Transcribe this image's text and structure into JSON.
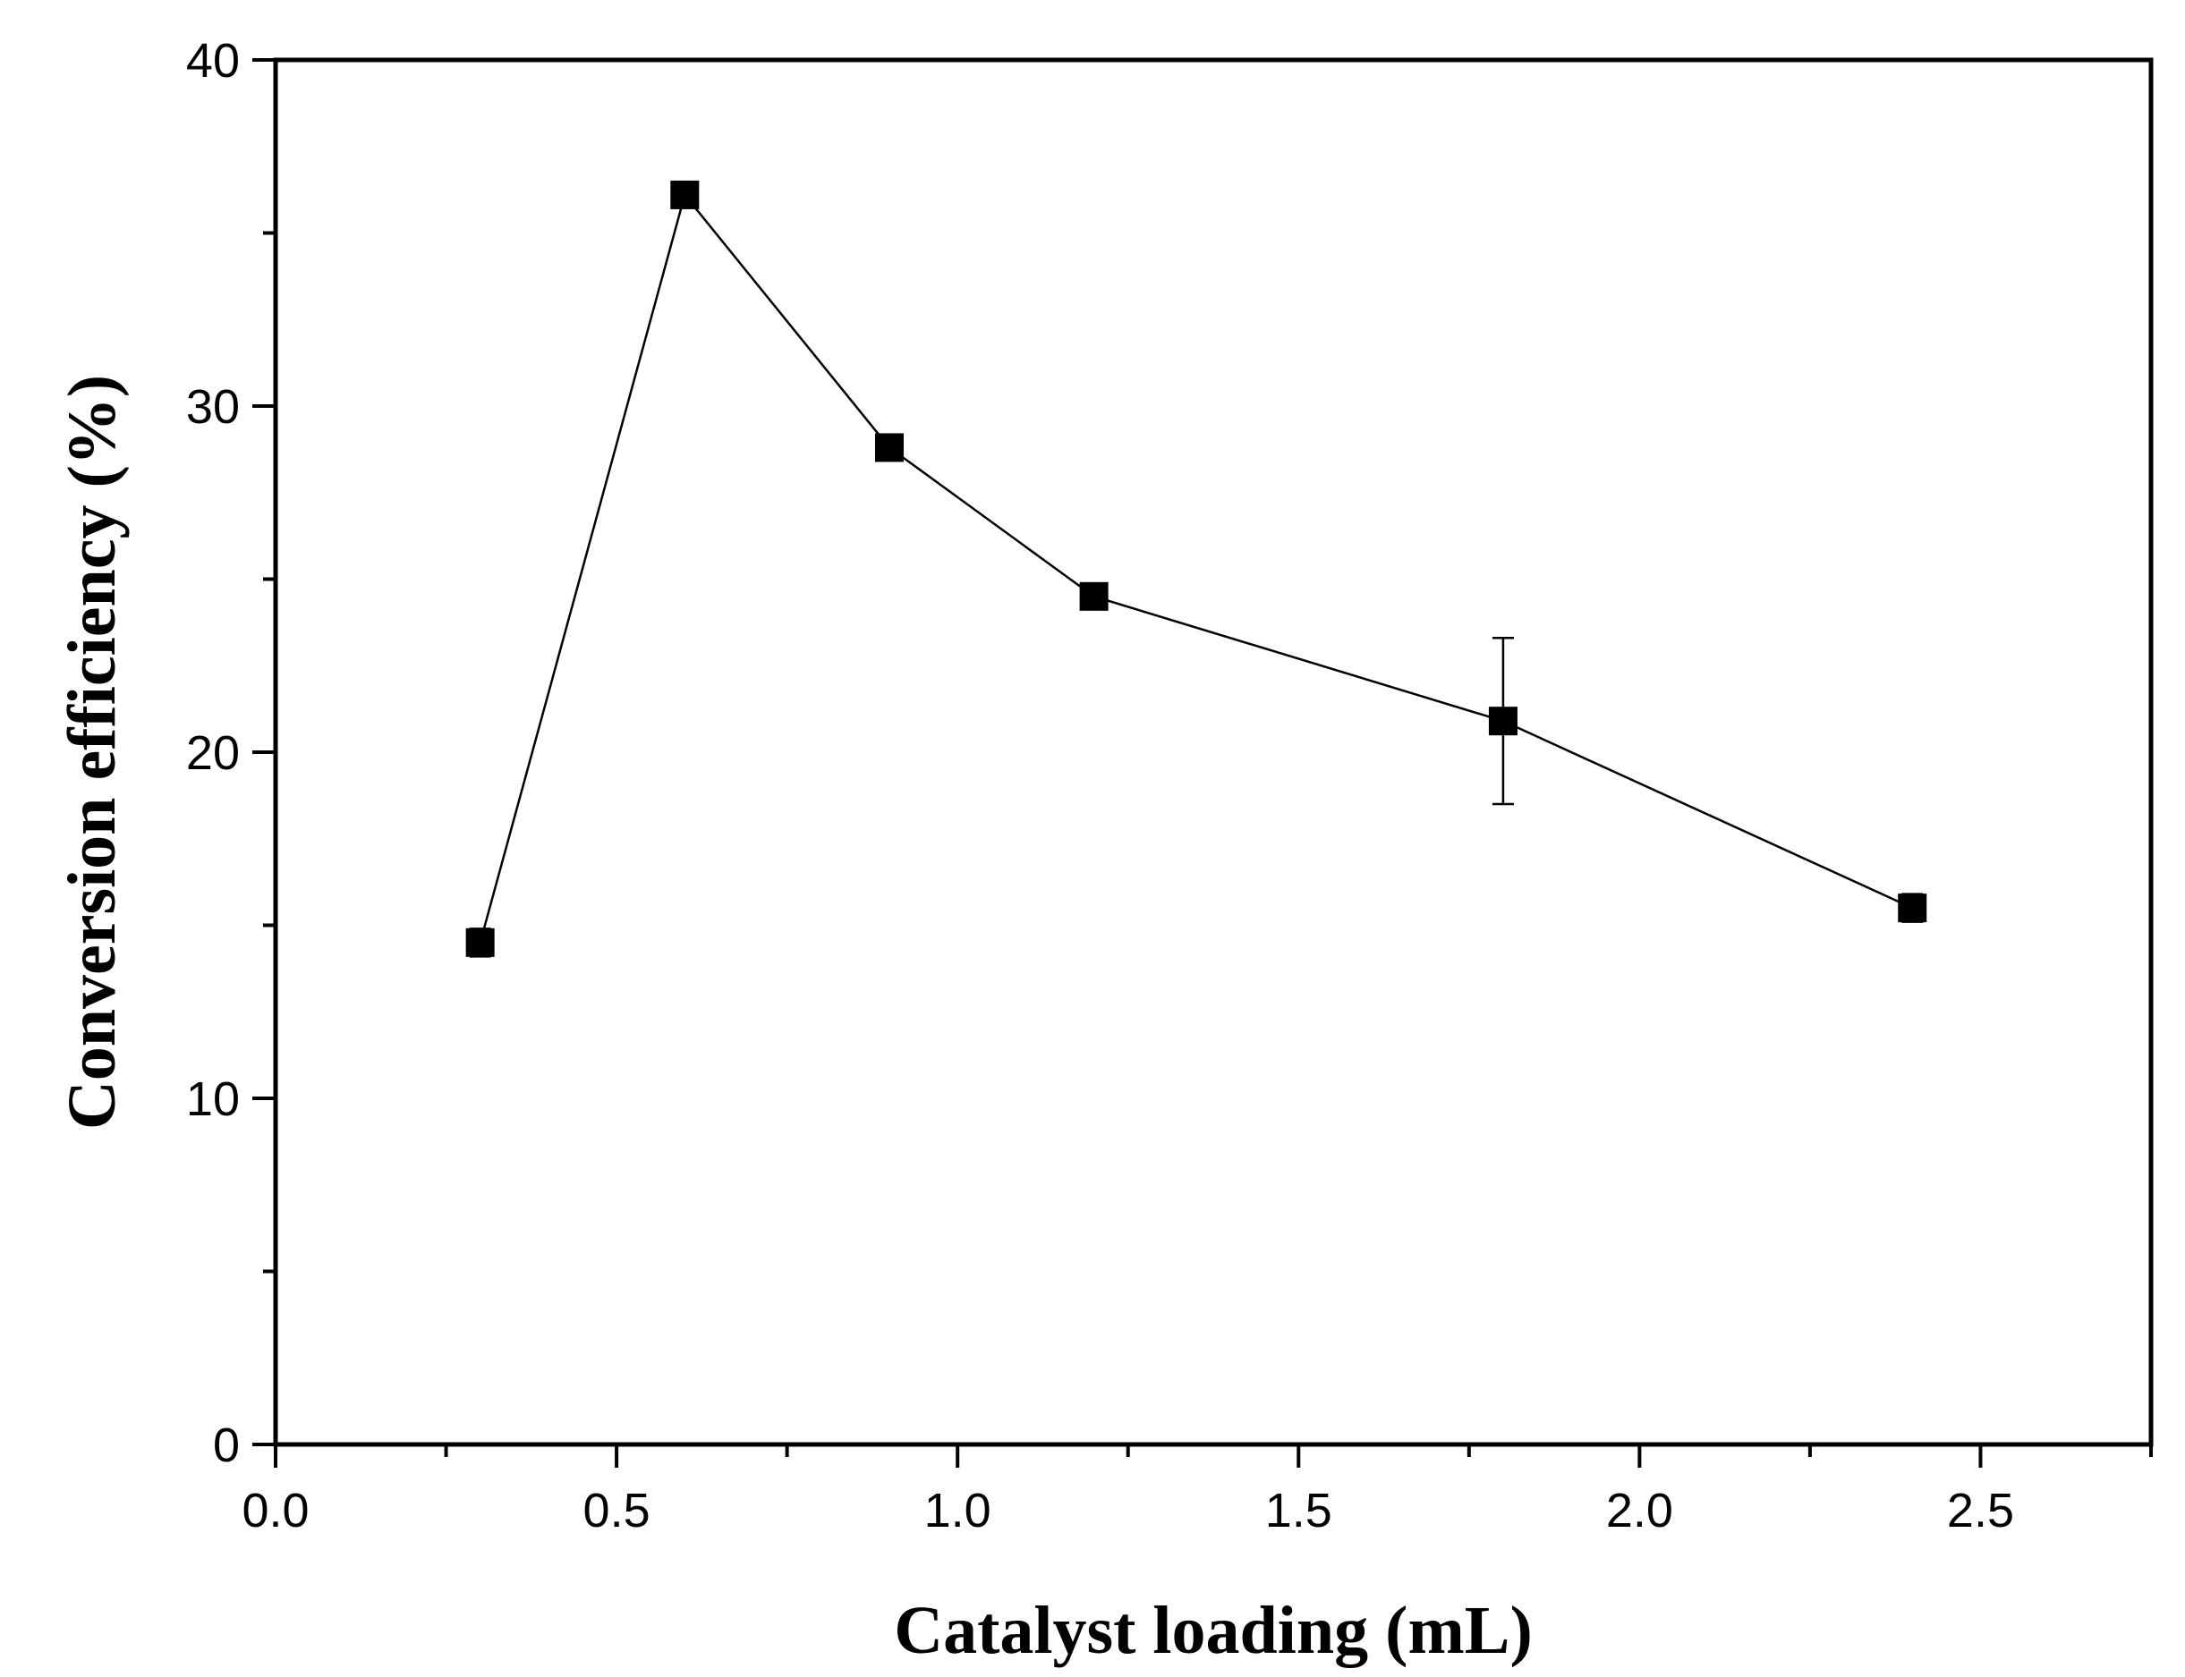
{
  "chart_data": {
    "type": "line",
    "xlabel": "Catalyst loading (mL)",
    "ylabel": "Conversion efficiency (%)",
    "xlim": [
      0,
      2.75
    ],
    "ylim": [
      0,
      40
    ],
    "x_ticks_major": [
      0.0,
      0.5,
      1.0,
      1.5,
      2.0,
      2.5
    ],
    "x_tick_labels": [
      "0.0",
      "0.5",
      "1.0",
      "1.5",
      "2.0",
      "2.5"
    ],
    "x_ticks_minor": [
      0.25,
      0.75,
      1.25,
      1.75,
      2.25,
      2.75
    ],
    "y_ticks_major": [
      0,
      10,
      20,
      30,
      40
    ],
    "y_tick_labels": [
      "0",
      "10",
      "20",
      "30",
      "40"
    ],
    "y_ticks_minor": [
      5,
      15,
      25,
      35
    ],
    "grid": false,
    "marker": "square",
    "color": "#000000",
    "series": [
      {
        "x": [
          0.3,
          0.6,
          0.9,
          1.2,
          1.8,
          2.4
        ],
        "y": [
          14.5,
          36.1,
          28.8,
          24.5,
          20.9,
          15.5
        ],
        "yerr": [
          0.4,
          0.2,
          0.2,
          0.2,
          2.4,
          0.4
        ]
      }
    ]
  }
}
